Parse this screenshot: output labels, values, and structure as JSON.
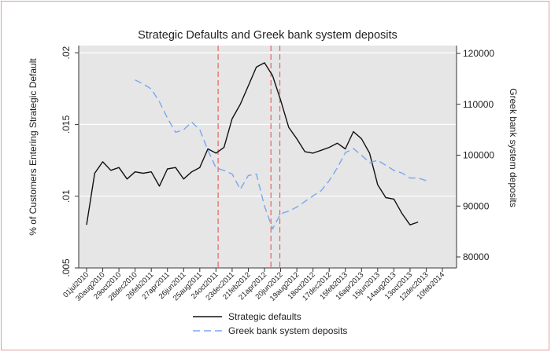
{
  "chart_data": {
    "type": "line",
    "title": "Strategic Defaults and Greek bank system deposits",
    "ylabel_left": "% of Customers Entering Strategic Default",
    "ylabel_right": "Greek bank system deposits",
    "xlabel": "",
    "x_ticks": [
      "01jul2010",
      "30aug2010",
      "29oct2010",
      "28dec2010",
      "26feb2011",
      "27apr2011",
      "26jun2011",
      "25aug2011",
      "24oct2011",
      "23dec2011",
      "21feb2012",
      "21apr2012",
      "20jun2012",
      "19aug2012",
      "18oct2012",
      "17dec2012",
      "15feb2013",
      "16apr2013",
      "15jun2013",
      "14aug2013",
      "13oct2013",
      "12dec2013",
      "10feb2014"
    ],
    "y_left_ticks": [
      ".005",
      ".01",
      ".015",
      ".02"
    ],
    "y_left_range": [
      0.005,
      0.0205
    ],
    "y_right_ticks": [
      "80000",
      "90000",
      "100000",
      "110000",
      "120000"
    ],
    "y_right_range": [
      80000,
      120000
    ],
    "grid": true,
    "legend_position": "bottom",
    "vertical_lines": [
      "01nov2011",
      "15may2012",
      "17jun2012"
    ],
    "series": [
      {
        "name": "Strategic defaults",
        "axis": "left",
        "color": "#111111",
        "style": "solid",
        "x": [
          "2010-07-01",
          "2010-07-31",
          "2010-08-30",
          "2010-09-29",
          "2010-10-29",
          "2010-11-28",
          "2010-12-28",
          "2011-01-27",
          "2011-02-26",
          "2011-03-28",
          "2011-04-27",
          "2011-05-27",
          "2011-06-26",
          "2011-07-26",
          "2011-08-25",
          "2011-09-24",
          "2011-10-24",
          "2011-11-23",
          "2011-12-23",
          "2012-01-22",
          "2012-02-21",
          "2012-03-22",
          "2012-04-21",
          "2012-05-21",
          "2012-06-20",
          "2012-07-20",
          "2012-08-19",
          "2012-09-18",
          "2012-10-18",
          "2012-11-17",
          "2012-12-17",
          "2013-01-16",
          "2013-02-15",
          "2013-03-17",
          "2013-04-16",
          "2013-05-16",
          "2013-06-15",
          "2013-07-15",
          "2013-08-14",
          "2013-09-13",
          "2013-10-13",
          "2013-11-12",
          "2013-12-12",
          "2014-01-11"
        ],
        "values": [
          0.008,
          0.0116,
          0.0124,
          0.0118,
          0.012,
          0.0112,
          0.0117,
          0.0116,
          0.0117,
          0.0107,
          0.0119,
          0.012,
          0.0112,
          0.0117,
          0.012,
          0.0133,
          0.013,
          0.0134,
          0.0154,
          0.0164,
          0.0177,
          0.019,
          0.0193,
          0.0184,
          0.0167,
          0.0148,
          0.014,
          0.0131,
          0.013,
          0.0132,
          0.0134,
          0.0137,
          0.0133,
          0.0145,
          0.014,
          0.013,
          0.0108,
          0.0099,
          0.0098,
          0.0088,
          0.008,
          0.0082,
          null,
          null
        ]
      },
      {
        "name": "Greek bank system deposits",
        "axis": "right",
        "color": "#7aa7ee",
        "style": "dashed",
        "x": [
          "2010-12-28",
          "2011-01-27",
          "2011-02-26",
          "2011-03-28",
          "2011-04-27",
          "2011-05-27",
          "2011-06-26",
          "2011-07-26",
          "2011-08-25",
          "2011-09-24",
          "2011-10-24",
          "2011-11-23",
          "2011-12-23",
          "2012-01-22",
          "2012-02-21",
          "2012-03-22",
          "2012-04-21",
          "2012-05-21",
          "2012-06-20",
          "2012-07-20",
          "2012-08-19",
          "2012-09-18",
          "2012-10-18",
          "2012-11-17",
          "2012-12-17",
          "2013-01-16",
          "2013-02-15",
          "2013-03-17",
          "2013-04-16",
          "2013-05-16",
          "2013-06-15",
          "2013-07-15",
          "2013-08-14",
          "2013-09-13",
          "2013-10-13",
          "2013-11-12",
          "2013-12-12"
        ],
        "values": [
          114800,
          114000,
          113000,
          110500,
          107300,
          104500,
          105000,
          106500,
          105000,
          101000,
          97500,
          97000,
          96300,
          93300,
          96000,
          96300,
          90000,
          85500,
          88500,
          89000,
          89800,
          90900,
          92000,
          93000,
          95000,
          97500,
          100500,
          101300,
          100000,
          98500,
          99000,
          98000,
          97000,
          96500,
          95500,
          95500,
          95000
        ]
      }
    ]
  }
}
